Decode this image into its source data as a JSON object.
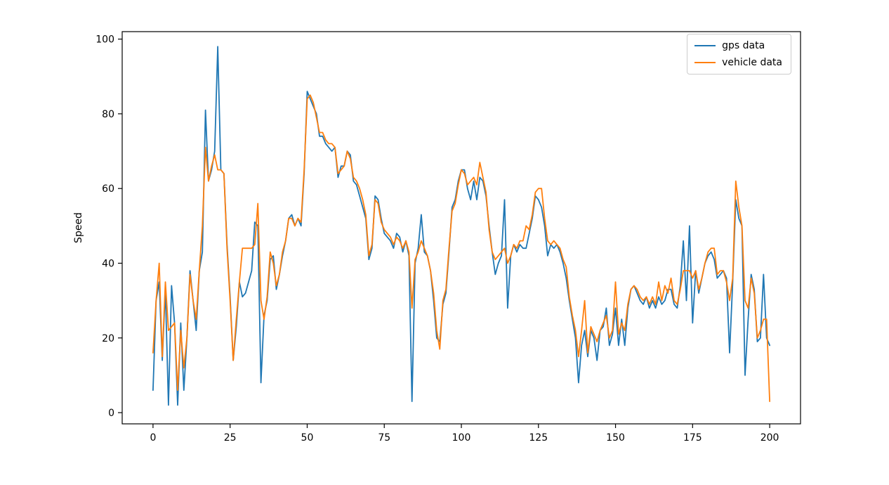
{
  "figure": {
    "background": "#ffffff",
    "spine_color": "#000000"
  },
  "legend": {
    "position": "upper right",
    "entries": [
      {
        "label": "gps data",
        "color": "#1f77b4"
      },
      {
        "label": "vehicle data",
        "color": "#ff7f0e"
      }
    ]
  },
  "chart_data": {
    "type": "line",
    "title": "",
    "xlabel": "",
    "ylabel": "Speed",
    "xlim": [
      -10,
      210
    ],
    "ylim": [
      -3,
      102
    ],
    "xticks": [
      0,
      25,
      50,
      75,
      100,
      125,
      150,
      175,
      200
    ],
    "yticks": [
      0,
      20,
      40,
      60,
      80,
      100
    ],
    "grid": false,
    "legend_position": "upper right",
    "x_start": 0,
    "x_step": 1,
    "series": [
      {
        "name": "gps data",
        "color": "#1f77b4",
        "values": [
          6,
          30,
          35,
          14,
          33,
          2,
          34,
          24,
          2,
          24,
          6,
          20,
          38,
          30,
          22,
          38,
          43,
          81,
          62,
          65,
          70,
          98,
          65,
          64,
          45,
          31,
          14,
          23,
          35,
          31,
          32,
          35,
          38,
          51,
          50,
          8,
          26,
          30,
          41,
          42,
          33,
          37,
          42,
          46,
          52,
          53,
          50,
          52,
          50,
          64,
          86,
          84,
          82,
          80,
          74,
          74,
          72,
          71,
          70,
          71,
          63,
          66,
          66,
          70,
          69,
          62,
          61,
          58,
          55,
          52,
          41,
          44,
          58,
          57,
          52,
          48,
          47,
          46,
          44,
          48,
          47,
          43,
          46,
          42,
          3,
          40,
          44,
          53,
          43,
          42,
          38,
          30,
          20,
          19,
          29,
          32,
          43,
          55,
          57,
          62,
          65,
          65,
          60,
          57,
          62,
          57,
          63,
          62,
          58,
          50,
          43,
          37,
          40,
          42,
          57,
          28,
          42,
          45,
          43,
          45,
          44,
          44,
          48,
          52,
          58,
          57,
          55,
          50,
          42,
          45,
          44,
          45,
          43,
          40,
          36,
          30,
          25,
          20,
          8,
          18,
          22,
          15,
          22,
          20,
          14,
          22,
          23,
          28,
          18,
          21,
          28,
          18,
          25,
          18,
          28,
          33,
          34,
          32,
          30,
          29,
          31,
          28,
          30,
          28,
          31,
          29,
          30,
          33,
          33,
          29,
          28,
          34,
          46,
          30,
          50,
          24,
          38,
          32,
          36,
          40,
          42,
          43,
          41,
          36,
          37,
          38,
          36,
          16,
          35,
          57,
          52,
          50,
          10,
          25,
          37,
          33,
          19,
          20,
          37,
          20,
          18
        ]
      },
      {
        "name": "vehicle data",
        "color": "#ff7f0e",
        "values": [
          16,
          30,
          40,
          15,
          35,
          22,
          23,
          24,
          6,
          22,
          12,
          20,
          37,
          30,
          25,
          38,
          50,
          71,
          62,
          66,
          69,
          65,
          65,
          64,
          44,
          30,
          14,
          25,
          35,
          44,
          44,
          44,
          44,
          45,
          56,
          30,
          25,
          31,
          43,
          40,
          34,
          37,
          43,
          46,
          52,
          52,
          50,
          52,
          51,
          65,
          84,
          85,
          83,
          79,
          75,
          75,
          73,
          72,
          72,
          71,
          64,
          65,
          66,
          70,
          68,
          63,
          62,
          60,
          57,
          53,
          42,
          45,
          57,
          56,
          51,
          49,
          48,
          47,
          45,
          47,
          46,
          44,
          46,
          43,
          28,
          41,
          43,
          46,
          44,
          42,
          38,
          32,
          22,
          17,
          30,
          33,
          44,
          54,
          56,
          61,
          65,
          64,
          61,
          62,
          63,
          61,
          67,
          63,
          59,
          49,
          43,
          41,
          42,
          43,
          44,
          40,
          42,
          45,
          44,
          46,
          46,
          50,
          49,
          53,
          59,
          60,
          60,
          52,
          46,
          45,
          46,
          45,
          44,
          41,
          39,
          31,
          26,
          22,
          15,
          22,
          30,
          16,
          23,
          21,
          19,
          22,
          24,
          26,
          20,
          22,
          35,
          21,
          24,
          22,
          29,
          33,
          34,
          33,
          31,
          30,
          31,
          29,
          31,
          29,
          35,
          30,
          34,
          32,
          36,
          30,
          29,
          33,
          38,
          38,
          38,
          36,
          38,
          33,
          36,
          40,
          43,
          44,
          44,
          37,
          38,
          38,
          35,
          30,
          36,
          62,
          55,
          50,
          30,
          28,
          36,
          32,
          20,
          22,
          25,
          25,
          3
        ]
      }
    ]
  }
}
